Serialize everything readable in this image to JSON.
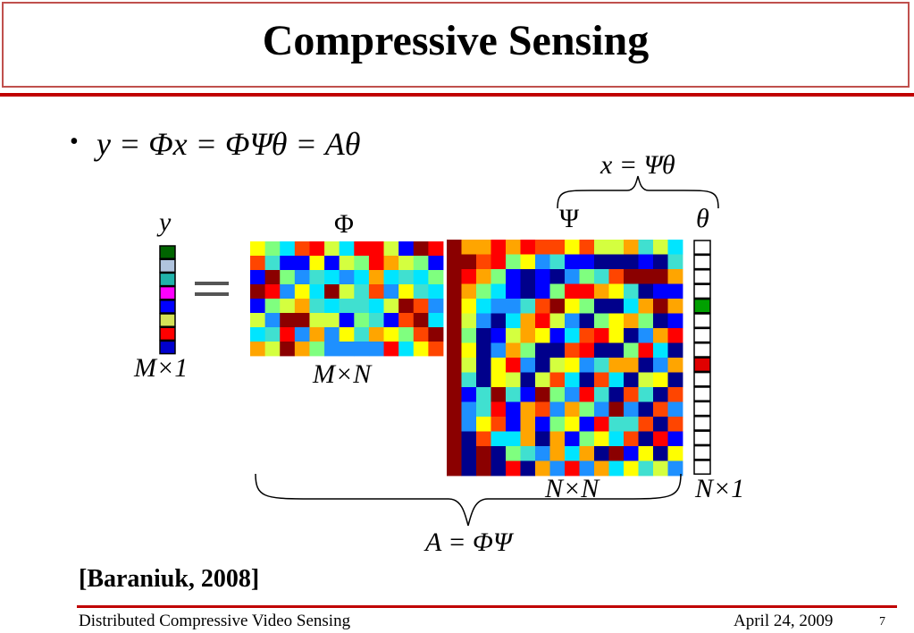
{
  "title": "Compressive Sensing",
  "bullet": {
    "symbol": "•",
    "equation": "y = Φx = ΦΨθ = Aθ"
  },
  "labels": {
    "x_eq": "x = Ψθ",
    "y": "y",
    "phi": "Φ",
    "psi": "Ψ",
    "theta": "θ",
    "m_by_1": "M×1",
    "m_by_n": "M×N",
    "n_by_n": "N×N",
    "n_by_1": "N×1",
    "a_eq": "A = ΦΨ"
  },
  "citation": "[Baraniuk, 2008]",
  "footer": {
    "left": "Distributed Compressive Video Sensing",
    "date": "April 24, 2009",
    "page": "7"
  },
  "colors": {
    "accent_red": "#c00000",
    "title_border": "#c0504d",
    "y_vector": [
      "#006400",
      "#b0c4de",
      "#20b2aa",
      "#ff00ff",
      "#0000ff",
      "#d4e157",
      "#ff0000",
      "#0000cd"
    ],
    "theta_highlights": {
      "4": "#00a000",
      "8": "#e00000",
      "16": "#0000c0"
    }
  }
}
